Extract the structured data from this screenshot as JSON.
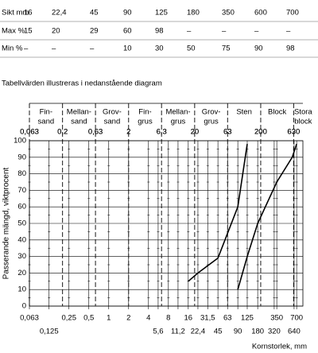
{
  "table": {
    "rows": [
      [
        "Sikt mm",
        "16",
        "22,4",
        "45",
        "90",
        "125",
        "180",
        "350",
        "600",
        "700"
      ],
      [
        "Max %",
        "15",
        "20",
        "29",
        "60",
        "98",
        "–",
        "–",
        "–",
        "–"
      ],
      [
        "Min %",
        "–",
        "–",
        "–",
        "10",
        "30",
        "50",
        "75",
        "90",
        "98"
      ]
    ]
  },
  "caption": "Tabellvärden illustreras i nedanstående diagram",
  "chart_data": {
    "type": "line",
    "log_x": true,
    "ylabel": "Passerande mängd, viktprocent",
    "xlabel": "Kornstorlek, mm",
    "xlim": [
      0.063,
      870
    ],
    "ylim": [
      0,
      100
    ],
    "yticks": [
      0,
      10,
      20,
      30,
      40,
      50,
      60,
      70,
      80,
      90,
      100
    ],
    "xticks": [
      {
        "value": 0.063,
        "label": "0,063"
      },
      {
        "value": 0.25,
        "label": "0,25"
      },
      {
        "value": 0.5,
        "label": "0,5"
      },
      1,
      2,
      4,
      8,
      16,
      {
        "value": 31.5,
        "label": "31,5"
      },
      63,
      125,
      350,
      700
    ],
    "xticks_lower": [
      {
        "value": 0.125,
        "label": "0,125"
      },
      {
        "value": 5.6,
        "label": "5,6"
      },
      {
        "value": 11.2,
        "label": "11,2"
      },
      {
        "value": 22.4,
        "label": "22,4"
      },
      45,
      90,
      180,
      320,
      640
    ],
    "zone_limits": [
      {
        "value": 0.063,
        "label": "0,063"
      },
      {
        "value": 0.2,
        "label": "0,2"
      },
      {
        "value": 0.63,
        "label": "0,63"
      },
      2,
      {
        "value": 6.3,
        "label": "6,3"
      },
      20,
      63,
      200,
      630
    ],
    "zones": [
      [
        "Fin-",
        "sand"
      ],
      [
        "Mellan-",
        "sand"
      ],
      [
        "Grov-",
        "sand"
      ],
      [
        "Fin-",
        "grus"
      ],
      [
        "Mellan-",
        "grus"
      ],
      [
        "Grov-",
        "grus"
      ],
      [
        "Sten"
      ],
      [
        "Block"
      ],
      [
        "Stora",
        "block"
      ]
    ],
    "series": [
      {
        "color": "#000000",
        "x": [
          16,
          22.4,
          45,
          90,
          125
        ],
        "values": [
          15,
          20,
          29,
          60,
          98
        ]
      },
      {
        "color": "#000000",
        "x": [
          90,
          125,
          180,
          350,
          600,
          700
        ],
        "values": [
          10,
          30,
          50,
          75,
          90,
          98
        ]
      }
    ]
  }
}
